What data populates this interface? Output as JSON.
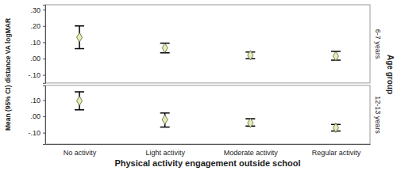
{
  "chart_data": [
    {
      "type": "errorbar",
      "title": "6-7 years",
      "y_label": "Mean (95% CI) distance VA logMAR",
      "annotations": [
        "Age group"
      ],
      "categories": [
        "No activity",
        "Light activity",
        "Moderate activity",
        "Regular activity"
      ],
      "values": [
        0.13,
        0.065,
        0.02,
        0.015
      ],
      "lower": [
        0.06,
        0.035,
        0.0,
        -0.01
      ],
      "upper": [
        0.2,
        0.095,
        0.04,
        0.045
      ],
      "color": "#e8edb5",
      "marker": "diamond",
      "ylim": [
        -0.15,
        0.33
      ],
      "yticks": [
        {
          "value": 0.3,
          "label": ".30"
        },
        {
          "value": 0.2,
          "label": ".20"
        },
        {
          "value": 0.1,
          "label": ".10"
        },
        {
          "value": 0,
          "label": ".00"
        },
        {
          "value": -0.1,
          "label": "-.10"
        }
      ],
      "grid": false,
      "tick_labels": "y"
    },
    {
      "type": "errorbar",
      "title": "12-13 years",
      "x_label": "Physical activity engagement outside school",
      "categories": [
        "No activity",
        "Light activity",
        "Moderate activity",
        "Regular activity"
      ],
      "values": [
        0.095,
        -0.02,
        -0.04,
        -0.07
      ],
      "lower": [
        0.04,
        -0.065,
        -0.06,
        -0.09
      ],
      "upper": [
        0.15,
        0.02,
        -0.015,
        -0.05
      ],
      "color": "#e8edb5",
      "marker": "diamond",
      "ylim": [
        -0.17,
        0.19
      ],
      "yticks": [
        {
          "value": 0.1,
          "label": ".10"
        },
        {
          "value": 0,
          "label": ".00"
        },
        {
          "value": -0.1,
          "label": "-.10"
        }
      ],
      "grid": false
    }
  ]
}
